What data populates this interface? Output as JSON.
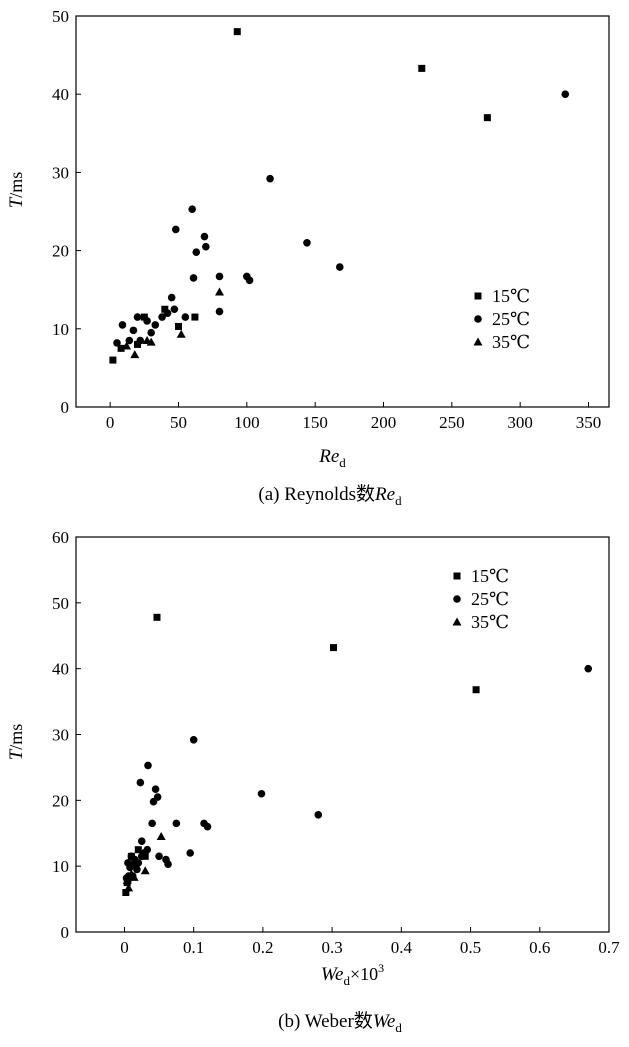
{
  "figure": {
    "caption_a": {
      "prefix": "(a) Reynolds数",
      "var": "Re",
      "sub": "d"
    },
    "caption_b": {
      "prefix": "(b) Weber数",
      "var": "We",
      "sub": "d"
    }
  },
  "legend": [
    {
      "label": "15℃",
      "marker": "square"
    },
    {
      "label": "25℃",
      "marker": "circle"
    },
    {
      "label": "35℃",
      "marker": "triangle"
    }
  ],
  "chart_data": [
    {
      "type": "scatter",
      "panel": "a",
      "xlabel": {
        "var": "Re",
        "sub": "d"
      },
      "ylabel": {
        "var": "T",
        "unit": "/ms"
      },
      "xlim": [
        -25,
        365
      ],
      "ylim": [
        0,
        50
      ],
      "xticks": [
        0,
        50,
        100,
        150,
        200,
        250,
        300,
        350
      ],
      "yticks": [
        0,
        10,
        20,
        30,
        40,
        50
      ],
      "legend_position": "right",
      "series": [
        {
          "name": "15℃",
          "marker": "square",
          "points": [
            [
              2,
              6
            ],
            [
              25,
              11.5
            ],
            [
              50,
              10.3
            ],
            [
              93,
              48
            ],
            [
              228,
              43.3
            ],
            [
              276,
              37
            ],
            [
              20,
              8
            ],
            [
              8,
              7.5
            ],
            [
              40,
              12.5
            ],
            [
              62,
              11.5
            ]
          ]
        },
        {
          "name": "25℃",
          "marker": "circle",
          "points": [
            [
              5,
              8.2
            ],
            [
              9,
              10.5
            ],
            [
              14,
              8.5
            ],
            [
              17,
              9.8
            ],
            [
              20,
              11.5
            ],
            [
              22,
              8.5
            ],
            [
              27,
              11
            ],
            [
              30,
              9.5
            ],
            [
              33,
              10.5
            ],
            [
              38,
              11.5
            ],
            [
              42,
              12
            ],
            [
              45,
              14
            ],
            [
              47,
              12.5
            ],
            [
              48,
              22.7
            ],
            [
              55,
              11.5
            ],
            [
              60,
              25.3
            ],
            [
              61,
              16.5
            ],
            [
              63,
              19.8
            ],
            [
              69,
              21.8
            ],
            [
              70,
              20.5
            ],
            [
              80,
              16.7
            ],
            [
              80,
              12.2
            ],
            [
              100,
              16.7
            ],
            [
              102,
              16.2
            ],
            [
              117,
              29.2
            ],
            [
              144,
              21
            ],
            [
              168,
              17.9
            ],
            [
              333,
              40
            ]
          ]
        },
        {
          "name": "35℃",
          "marker": "triangle",
          "points": [
            [
              18,
              6.7
            ],
            [
              30,
              8.3
            ],
            [
              52,
              9.3
            ],
            [
              80,
              14.7
            ],
            [
              12,
              7.8
            ],
            [
              27,
              8.5
            ]
          ]
        }
      ]
    },
    {
      "type": "scatter",
      "panel": "b",
      "xlabel": {
        "var": "We",
        "sub": "d",
        "suffix": "×10",
        "sup": "3"
      },
      "ylabel": {
        "var": "T",
        "unit": "/ms"
      },
      "xlim": [
        -0.07,
        0.7
      ],
      "ylim": [
        0,
        60
      ],
      "xticks": [
        0,
        0.1,
        0.2,
        0.3,
        0.4,
        0.5,
        0.6,
        0.7
      ],
      "yticks": [
        0,
        10,
        20,
        30,
        40,
        50,
        60
      ],
      "legend_position": "top-right",
      "series": [
        {
          "name": "15℃",
          "marker": "square",
          "points": [
            [
              0.002,
              6
            ],
            [
              0.01,
              11.5
            ],
            [
              0.015,
              10.3
            ],
            [
              0.047,
              47.8
            ],
            [
              0.302,
              43.2
            ],
            [
              0.508,
              36.8
            ],
            [
              0.005,
              8
            ],
            [
              0.004,
              7.5
            ],
            [
              0.02,
              12.5
            ],
            [
              0.03,
              11.5
            ]
          ]
        },
        {
          "name": "25℃",
          "marker": "circle",
          "points": [
            [
              0.003,
              8.2
            ],
            [
              0.005,
              10.5
            ],
            [
              0.006,
              8.5
            ],
            [
              0.008,
              9.8
            ],
            [
              0.01,
              11.5
            ],
            [
              0.012,
              8.5
            ],
            [
              0.015,
              11
            ],
            [
              0.018,
              9.5
            ],
            [
              0.02,
              10.5
            ],
            [
              0.025,
              11.5
            ],
            [
              0.028,
              12
            ],
            [
              0.025,
              13.8
            ],
            [
              0.033,
              12.5
            ],
            [
              0.023,
              22.7
            ],
            [
              0.05,
              11.5
            ],
            [
              0.034,
              25.3
            ],
            [
              0.04,
              16.5
            ],
            [
              0.042,
              19.8
            ],
            [
              0.045,
              21.7
            ],
            [
              0.048,
              20.5
            ],
            [
              0.075,
              16.5
            ],
            [
              0.095,
              12
            ],
            [
              0.115,
              16.5
            ],
            [
              0.12,
              16
            ],
            [
              0.1,
              29.2
            ],
            [
              0.198,
              21
            ],
            [
              0.28,
              17.8
            ],
            [
              0.67,
              40
            ],
            [
              0.06,
              11
            ],
            [
              0.063,
              10.3
            ]
          ]
        },
        {
          "name": "35℃",
          "marker": "triangle",
          "points": [
            [
              0.006,
              6.7
            ],
            [
              0.014,
              8.3
            ],
            [
              0.03,
              9.3
            ],
            [
              0.053,
              14.5
            ],
            [
              0.004,
              7.8
            ],
            [
              0.01,
              8.8
            ]
          ]
        }
      ]
    }
  ]
}
